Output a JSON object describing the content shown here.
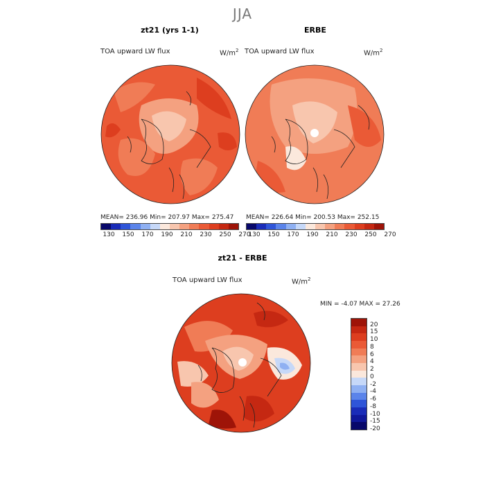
{
  "figure_title": "JJA",
  "panels": [
    {
      "title": "zt21 (yrs 1-1)",
      "field_label": "TOA upward LW flux",
      "units": "W/m",
      "units_exp": "2",
      "stats": "MEAN= 236.96   Min= 207.97   Max= 275.47"
    },
    {
      "title": "ERBE",
      "field_label": "TOA upward LW flux",
      "units": "W/m",
      "units_exp": "2",
      "stats": "MEAN= 226.64   Min= 200.53   Max= 252.15"
    },
    {
      "title": "zt21 - ERBE",
      "field_label": "TOA upward LW flux",
      "units": "W/m",
      "units_exp": "2",
      "stats": "MIN =    -4.07  MAX =   27.26"
    }
  ],
  "colorbar_horizontal": {
    "tick_labels": [
      "130",
      "150",
      "170",
      "190",
      "210",
      "230",
      "250",
      "270"
    ],
    "colors": [
      "#08086a",
      "#1a2cb8",
      "#2f55d8",
      "#5b84ea",
      "#8fb0f2",
      "#c6d8f8",
      "#fbe8dc",
      "#f8c6ae",
      "#f4a180",
      "#f07c56",
      "#ea5a36",
      "#dd3e1f",
      "#c52812",
      "#9e1408"
    ]
  },
  "colorbar_vertical": {
    "tick_labels": [
      "20",
      "15",
      "10",
      "8",
      "6",
      "4",
      "2",
      "0",
      "-2",
      "-4",
      "-6",
      "-8",
      "-10",
      "-15",
      "-20"
    ],
    "colors": [
      "#9e1408",
      "#c52812",
      "#dd3e1f",
      "#ea5a36",
      "#f07c56",
      "#f4a180",
      "#f8c6ae",
      "#fbe8dc",
      "#c6d8f8",
      "#8fb0f2",
      "#5b84ea",
      "#2f55d8",
      "#1a2cb8",
      "#10189a",
      "#08086a"
    ]
  },
  "map_colors": {
    "ocean_warm": "#ea5a36",
    "mid": "#f07c56",
    "light": "#f4a180",
    "pale": "#f8c6ae",
    "dark": "#dd3e1f",
    "blue_light": "#c6d8f8",
    "blue_mid": "#8fb0f2"
  }
}
